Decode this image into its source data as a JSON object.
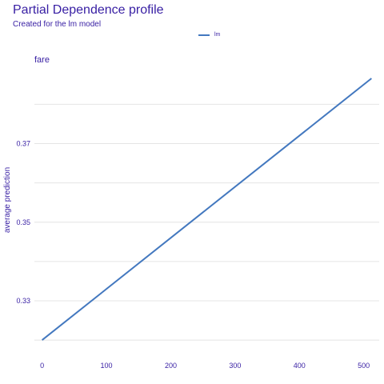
{
  "chart_data": {
    "type": "line",
    "title": "Partial Dependence profile",
    "subtitle": "Created for the lm model",
    "panel_title": "fare",
    "xlabel": "",
    "ylabel": "average prediction",
    "xlim": [
      -12,
      524
    ],
    "ylim": [
      0.319,
      0.3866
    ],
    "x_ticks": [
      0,
      100,
      200,
      300,
      400,
      500
    ],
    "y_ticks": [
      0.33,
      0.35,
      0.37
    ],
    "y_tick_labels": [
      "0.33",
      "0.35",
      "0.37"
    ],
    "grid": true,
    "legend_position": "top",
    "series": [
      {
        "name": "lm",
        "color": "#4378bf",
        "x": [
          0,
          512
        ],
        "y": [
          0.32,
          0.3866
        ]
      }
    ]
  }
}
